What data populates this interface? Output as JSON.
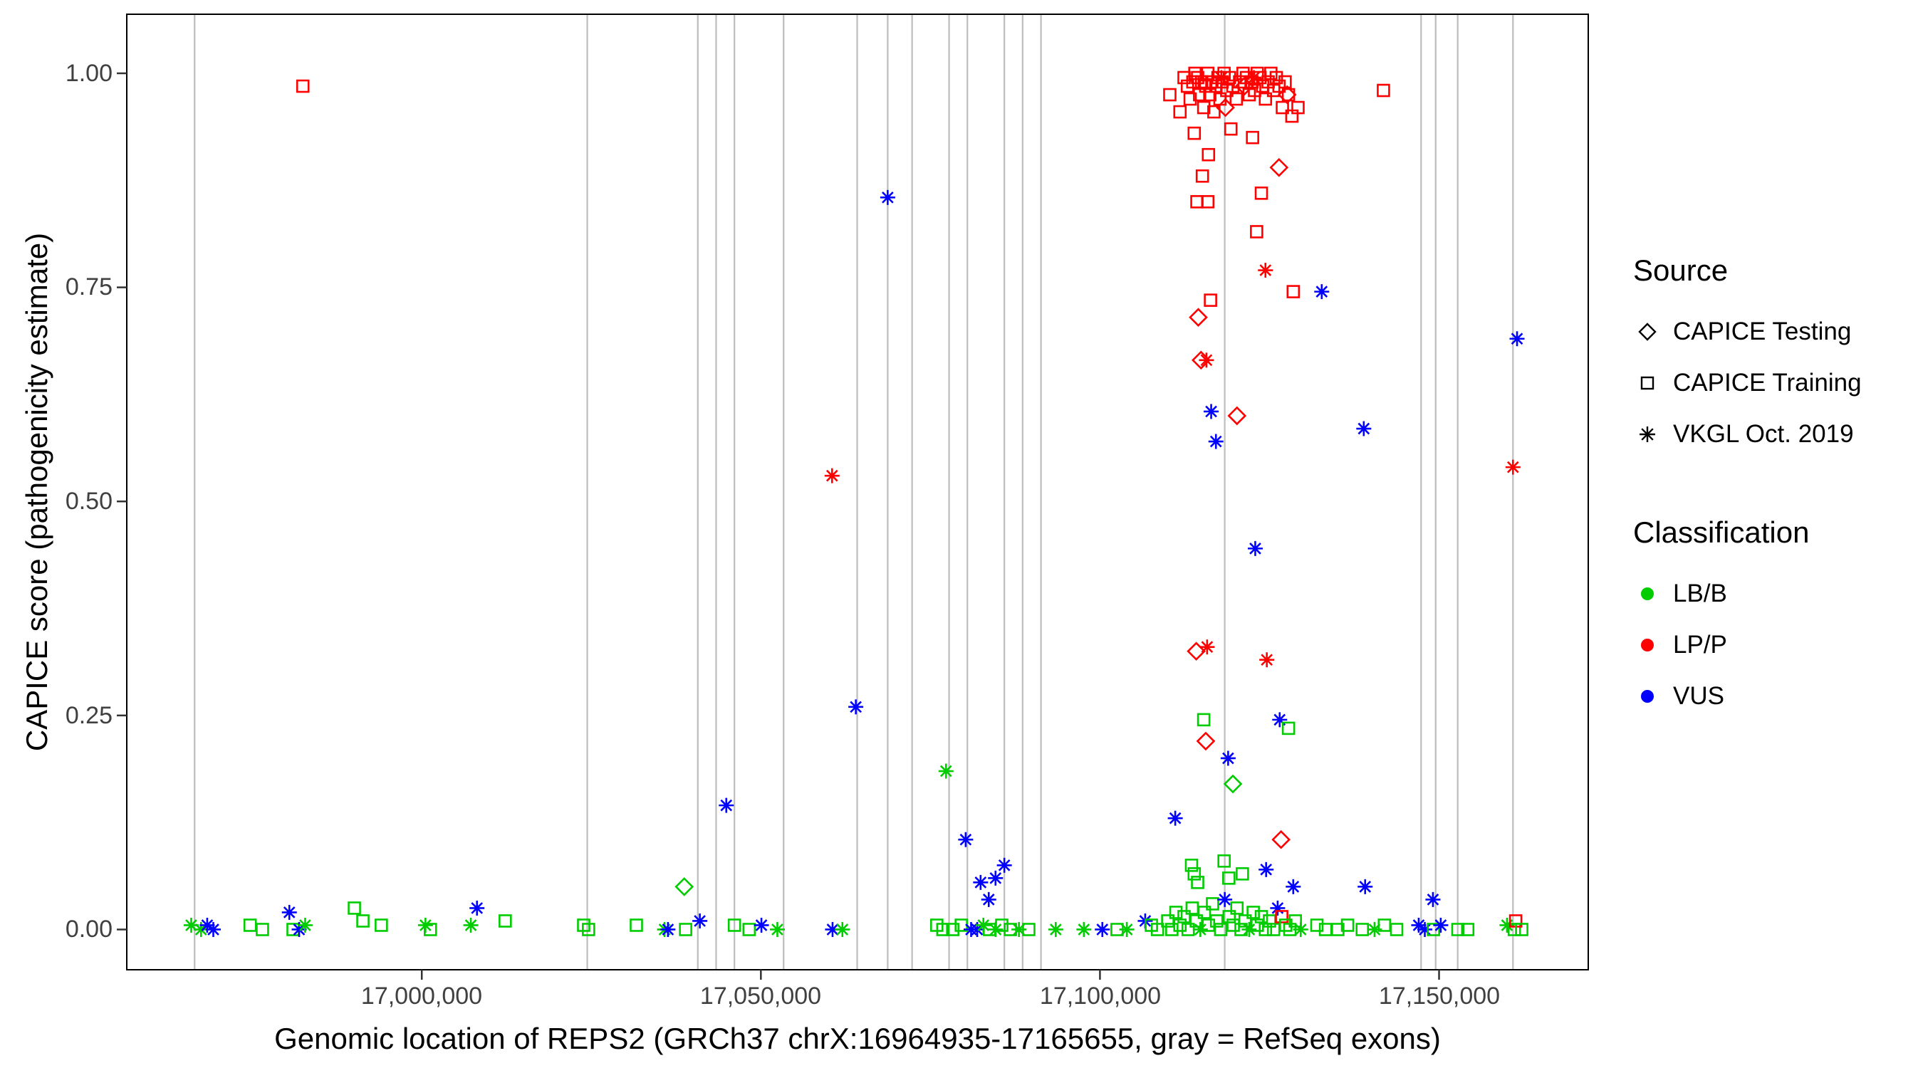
{
  "figure": {
    "y_axis": {
      "title": "CAPICE score (pathogenicity estimate)",
      "ticks": [
        "1.00",
        "0.75",
        "0.50",
        "0.25",
        "0.00"
      ]
    },
    "x_axis": {
      "title": "Genomic location of REPS2 (GRCh37 chrX:16964935-17165655, gray = RefSeq exons)",
      "ticks": [
        "17,000,000",
        "17,050,000",
        "17,100,000",
        "17,150,000"
      ]
    },
    "legend": {
      "source": {
        "title": "Source",
        "items": [
          {
            "label": "CAPICE Testing",
            "shape": "diamond"
          },
          {
            "label": "CAPICE Training",
            "shape": "square"
          },
          {
            "label": "VKGL Oct. 2019",
            "shape": "asterisk"
          }
        ]
      },
      "classification": {
        "title": "Classification",
        "items": [
          {
            "label": "LB/B",
            "color": "#00CC00"
          },
          {
            "label": "LP/P",
            "color": "#FF0000"
          },
          {
            "label": "VUS",
            "color": "#0000FF"
          }
        ]
      }
    }
  },
  "chart_data": {
    "type": "scatter",
    "title": "",
    "xlabel": "Genomic location of REPS2 (GRCh37 chrX:16964935-17165655, gray = RefSeq exons)",
    "ylabel": "CAPICE score (pathogenicity estimate)",
    "xlim": [
      16956500,
      17172000
    ],
    "ylim": [
      -0.047,
      1.069
    ],
    "x_ticks": [
      17000000,
      17050000,
      17100000,
      17150000
    ],
    "y_ticks": [
      0,
      0.25,
      0.5,
      0.75,
      1.0
    ],
    "grid": false,
    "legend_position": "right",
    "exon_line_color": "#BDBDBD",
    "exon_lines_x": [
      16966500,
      17024400,
      17040700,
      17043400,
      17046100,
      17053350,
      17064200,
      17068700,
      17072300,
      17077750,
      17080450,
      17085900,
      17088600,
      17091300,
      17118400,
      17147350,
      17149500,
      17152750,
      17160900
    ],
    "sources": [
      "CAPICE Testing",
      "CAPICE Training",
      "VKGL Oct. 2019"
    ],
    "shapes": {
      "CAPICE Testing": "diamond",
      "CAPICE Training": "square",
      "VKGL Oct. 2019": "asterisk"
    },
    "classes": [
      "LB/B",
      "LP/P",
      "VUS"
    ],
    "colors": {
      "LB/B": "#00CC00",
      "LP/P": "#FF0000",
      "VUS": "#0000FF"
    },
    "point_format": [
      "x",
      "y",
      "source_index",
      "class_index"
    ],
    "points": [
      [
        16966000,
        0.005,
        2,
        0
      ],
      [
        16967450,
        0,
        2,
        0
      ],
      [
        16968360,
        0.005,
        2,
        2
      ],
      [
        16969260,
        0,
        2,
        2
      ],
      [
        16974690,
        0.005,
        1,
        0
      ],
      [
        16976500,
        0,
        1,
        0
      ],
      [
        16980470,
        0.02,
        2,
        2
      ],
      [
        16981020,
        0,
        1,
        0
      ],
      [
        16981920,
        0,
        2,
        2
      ],
      [
        16982462,
        0.985,
        1,
        1
      ],
      [
        16982800,
        0.005,
        2,
        0
      ],
      [
        16990060,
        0.025,
        1,
        0
      ],
      [
        16991320,
        0.01,
        1,
        0
      ],
      [
        16994030,
        0.005,
        1,
        0
      ],
      [
        17000540,
        0.005,
        2,
        0
      ],
      [
        17001270,
        0,
        1,
        0
      ],
      [
        17007230,
        0.005,
        2,
        0
      ],
      [
        17008140,
        0.025,
        2,
        2
      ],
      [
        17012300,
        0.01,
        1,
        0
      ],
      [
        17023870,
        0.005,
        1,
        0
      ],
      [
        17024590,
        0,
        1,
        0
      ],
      [
        17031640,
        0.005,
        1,
        0
      ],
      [
        17035800,
        0,
        2,
        0
      ],
      [
        17036300,
        0,
        2,
        2
      ],
      [
        17038700,
        0.05,
        0,
        0
      ],
      [
        17038900,
        0,
        1,
        0
      ],
      [
        17041000,
        0.01,
        2,
        2
      ],
      [
        17044900,
        0.145,
        2,
        2
      ],
      [
        17046100,
        0.005,
        1,
        0
      ],
      [
        17048270,
        0,
        1,
        0
      ],
      [
        17050080,
        0.005,
        2,
        2
      ],
      [
        17052430,
        0,
        2,
        0
      ],
      [
        17060500,
        0.53,
        2,
        1
      ],
      [
        17060570,
        0,
        2,
        2
      ],
      [
        17062020,
        0,
        2,
        0
      ],
      [
        17064000,
        0.26,
        2,
        2
      ],
      [
        17068700,
        0.855,
        2,
        2
      ],
      [
        17075940,
        0.005,
        1,
        0
      ],
      [
        17076840,
        0,
        1,
        0
      ],
      [
        17077300,
        0.185,
        2,
        0
      ],
      [
        17078290,
        0,
        1,
        0
      ],
      [
        17079550,
        0.005,
        1,
        0
      ],
      [
        17080200,
        0.105,
        2,
        2
      ],
      [
        17081000,
        0,
        2,
        2
      ],
      [
        17081900,
        0,
        2,
        2
      ],
      [
        17082400,
        0.055,
        2,
        2
      ],
      [
        17082810,
        0.005,
        2,
        0
      ],
      [
        17083600,
        0.035,
        2,
        2
      ],
      [
        17083710,
        0,
        1,
        0
      ],
      [
        17084600,
        0.06,
        2,
        2
      ],
      [
        17084620,
        0,
        2,
        0
      ],
      [
        17085520,
        0.005,
        1,
        0
      ],
      [
        17085900,
        0.075,
        2,
        2
      ],
      [
        17086790,
        0,
        1,
        0
      ],
      [
        17088050,
        0,
        2,
        0
      ],
      [
        17089500,
        0,
        1,
        0
      ],
      [
        17093480,
        0,
        2,
        0
      ],
      [
        17097630,
        0,
        2,
        0
      ],
      [
        17100350,
        0,
        2,
        2
      ],
      [
        17102520,
        0,
        1,
        0
      ],
      [
        17103960,
        0,
        2,
        0
      ],
      [
        17106670,
        0.01,
        2,
        2
      ],
      [
        17107580,
        0.005,
        1,
        0
      ],
      [
        17108480,
        0,
        1,
        0
      ],
      [
        17110000,
        0.01,
        1,
        0
      ],
      [
        17110600,
        0,
        1,
        0
      ],
      [
        17111100,
        0.13,
        2,
        2
      ],
      [
        17111200,
        0.02,
        1,
        0
      ],
      [
        17111800,
        0.005,
        1,
        0
      ],
      [
        17112400,
        0.015,
        1,
        0
      ],
      [
        17113000,
        0,
        1,
        0
      ],
      [
        17113500,
        0.075,
        1,
        0
      ],
      [
        17113600,
        0.025,
        1,
        0
      ],
      [
        17113900,
        0.065,
        1,
        0
      ],
      [
        17114200,
        0.01,
        1,
        0
      ],
      [
        17114400,
        0.055,
        1,
        0
      ],
      [
        17114800,
        0,
        2,
        0
      ],
      [
        17115300,
        0.245,
        1,
        0
      ],
      [
        17115400,
        0.02,
        1,
        0
      ],
      [
        17115600,
        0.22,
        0,
        1
      ],
      [
        17116000,
        0.005,
        1,
        0
      ],
      [
        17116600,
        0.03,
        1,
        0
      ],
      [
        17117200,
        0.01,
        1,
        0
      ],
      [
        17117800,
        0,
        1,
        0
      ],
      [
        17118300,
        0.08,
        1,
        0
      ],
      [
        17118400,
        0.035,
        2,
        2
      ],
      [
        17118900,
        0.2,
        2,
        2
      ],
      [
        17119000,
        0.06,
        1,
        0
      ],
      [
        17119050,
        0.015,
        1,
        0
      ],
      [
        17119600,
        0.17,
        0,
        0
      ],
      [
        17119650,
        0.005,
        1,
        0
      ],
      [
        17120200,
        0.025,
        1,
        0
      ],
      [
        17120800,
        0,
        1,
        0
      ],
      [
        17121000,
        0.065,
        1,
        0
      ],
      [
        17121400,
        0.01,
        1,
        0
      ],
      [
        17122000,
        0,
        2,
        0
      ],
      [
        17122600,
        0.02,
        1,
        0
      ],
      [
        17123200,
        0.005,
        1,
        0
      ],
      [
        17123800,
        0.015,
        1,
        0
      ],
      [
        17124400,
        0,
        1,
        0
      ],
      [
        17124500,
        0.07,
        2,
        2
      ],
      [
        17125000,
        0.01,
        1,
        0
      ],
      [
        17125600,
        0,
        1,
        0
      ],
      [
        17126200,
        0.025,
        2,
        2
      ],
      [
        17126500,
        0.245,
        2,
        2
      ],
      [
        17126700,
        0.105,
        0,
        1
      ],
      [
        17126800,
        0.015,
        1,
        1
      ],
      [
        17127400,
        0.005,
        1,
        0
      ],
      [
        17127800,
        0.235,
        1,
        0
      ],
      [
        17128000,
        0,
        1,
        0
      ],
      [
        17128500,
        0.05,
        2,
        2
      ],
      [
        17128800,
        0.01,
        1,
        0
      ],
      [
        17129600,
        0,
        2,
        0
      ],
      [
        17114200,
        0.325,
        0,
        1
      ],
      [
        17115800,
        0.33,
        2,
        1
      ],
      [
        17114500,
        0.715,
        0,
        1
      ],
      [
        17114900,
        0.665,
        0,
        1
      ],
      [
        17115700,
        0.665,
        2,
        1
      ],
      [
        17116300,
        0.735,
        1,
        1
      ],
      [
        17116400,
        0.605,
        2,
        2
      ],
      [
        17117100,
        0.57,
        2,
        2
      ],
      [
        17120200,
        0.6,
        0,
        1
      ],
      [
        17122900,
        0.445,
        2,
        2
      ],
      [
        17123100,
        0.815,
        1,
        1
      ],
      [
        17123800,
        0.86,
        1,
        1
      ],
      [
        17124400,
        0.77,
        2,
        1
      ],
      [
        17124600,
        0.315,
        2,
        1
      ],
      [
        17126400,
        0.89,
        0,
        1
      ],
      [
        17128500,
        0.745,
        1,
        1
      ],
      [
        17115100,
        0.88,
        1,
        1
      ],
      [
        17116000,
        0.905,
        1,
        1
      ],
      [
        17114300,
        0.85,
        1,
        1
      ],
      [
        17115900,
        0.85,
        1,
        1
      ],
      [
        17113900,
        0.93,
        1,
        1
      ],
      [
        17119300,
        0.935,
        1,
        1
      ],
      [
        17122500,
        0.925,
        1,
        1
      ],
      [
        17110300,
        0.975,
        1,
        1
      ],
      [
        17111800,
        0.955,
        1,
        1
      ],
      [
        17112400,
        0.995,
        1,
        1
      ],
      [
        17112900,
        0.985,
        1,
        1
      ],
      [
        17113300,
        0.97,
        1,
        1
      ],
      [
        17113700,
        0.99,
        1,
        1
      ],
      [
        17114000,
        1.0,
        1,
        1
      ],
      [
        17114400,
        0.995,
        1,
        1
      ],
      [
        17114700,
        0.975,
        1,
        1
      ],
      [
        17115000,
        0.99,
        1,
        1
      ],
      [
        17115300,
        0.96,
        1,
        1
      ],
      [
        17115600,
        0.985,
        1,
        1
      ],
      [
        17115900,
        1.0,
        1,
        1
      ],
      [
        17116200,
        0.975,
        1,
        1
      ],
      [
        17116500,
        0.99,
        1,
        1
      ],
      [
        17116800,
        0.955,
        1,
        1
      ],
      [
        17117100,
        0.985,
        1,
        1
      ],
      [
        17117400,
        0.995,
        1,
        1
      ],
      [
        17117700,
        0.97,
        1,
        1
      ],
      [
        17118000,
        0.99,
        1,
        1
      ],
      [
        17118300,
        1.0,
        1,
        1
      ],
      [
        17118700,
        0.98,
        1,
        1
      ],
      [
        17119100,
        0.995,
        1,
        1
      ],
      [
        17119600,
        0.985,
        1,
        1
      ],
      [
        17120100,
        0.97,
        1,
        1
      ],
      [
        17120600,
        0.99,
        1,
        1
      ],
      [
        17121100,
        1.0,
        1,
        1
      ],
      [
        17121600,
        0.995,
        1,
        1
      ],
      [
        17122000,
        0.975,
        1,
        1
      ],
      [
        17122400,
        0.99,
        1,
        1
      ],
      [
        17122800,
        0.98,
        1,
        1
      ],
      [
        17123200,
        1.0,
        1,
        1
      ],
      [
        17123600,
        0.995,
        1,
        1
      ],
      [
        17124000,
        0.985,
        1,
        1
      ],
      [
        17124400,
        0.97,
        1,
        1
      ],
      [
        17124800,
        0.99,
        1,
        1
      ],
      [
        17125200,
        1.0,
        1,
        1
      ],
      [
        17125600,
        0.98,
        1,
        1
      ],
      [
        17126000,
        0.995,
        1,
        1
      ],
      [
        17126400,
        0.985,
        1,
        1
      ],
      [
        17126900,
        0.96,
        1,
        1
      ],
      [
        17127300,
        0.99,
        1,
        1
      ],
      [
        17127800,
        0.975,
        1,
        1
      ],
      [
        17128300,
        0.95,
        1,
        1
      ],
      [
        17129200,
        0.96,
        1,
        1
      ],
      [
        17118500,
        0.96,
        0,
        1
      ],
      [
        17121300,
        0.985,
        0,
        1
      ],
      [
        17127600,
        0.975,
        0,
        1
      ],
      [
        17117900,
        0.995,
        2,
        1
      ],
      [
        17122700,
        0.995,
        2,
        1
      ],
      [
        17131990,
        0.005,
        1,
        0
      ],
      [
        17132700,
        0.745,
        2,
        2
      ],
      [
        17133260,
        0,
        1,
        0
      ],
      [
        17135070,
        0,
        1,
        0
      ],
      [
        17136510,
        0.005,
        1,
        0
      ],
      [
        17138680,
        0,
        1,
        0
      ],
      [
        17138900,
        0.585,
        2,
        2
      ],
      [
        17139100,
        0.05,
        2,
        2
      ],
      [
        17140490,
        0,
        2,
        0
      ],
      [
        17141800,
        0.98,
        1,
        1
      ],
      [
        17141940,
        0.005,
        1,
        0
      ],
      [
        17143750,
        0,
        1,
        0
      ],
      [
        17147000,
        0.005,
        2,
        2
      ],
      [
        17147900,
        0,
        2,
        2
      ],
      [
        17149100,
        0.035,
        2,
        2
      ],
      [
        17149170,
        0,
        1,
        0
      ],
      [
        17150250,
        0.005,
        2,
        2
      ],
      [
        17152780,
        0,
        1,
        0
      ],
      [
        17154230,
        0,
        1,
        0
      ],
      [
        17160020,
        0.005,
        2,
        0
      ],
      [
        17160900,
        0.54,
        2,
        1
      ],
      [
        17161100,
        0,
        1,
        0
      ],
      [
        17161300,
        0.01,
        1,
        1
      ],
      [
        17161500,
        0.69,
        2,
        2
      ],
      [
        17162190,
        0,
        1,
        0
      ]
    ]
  }
}
